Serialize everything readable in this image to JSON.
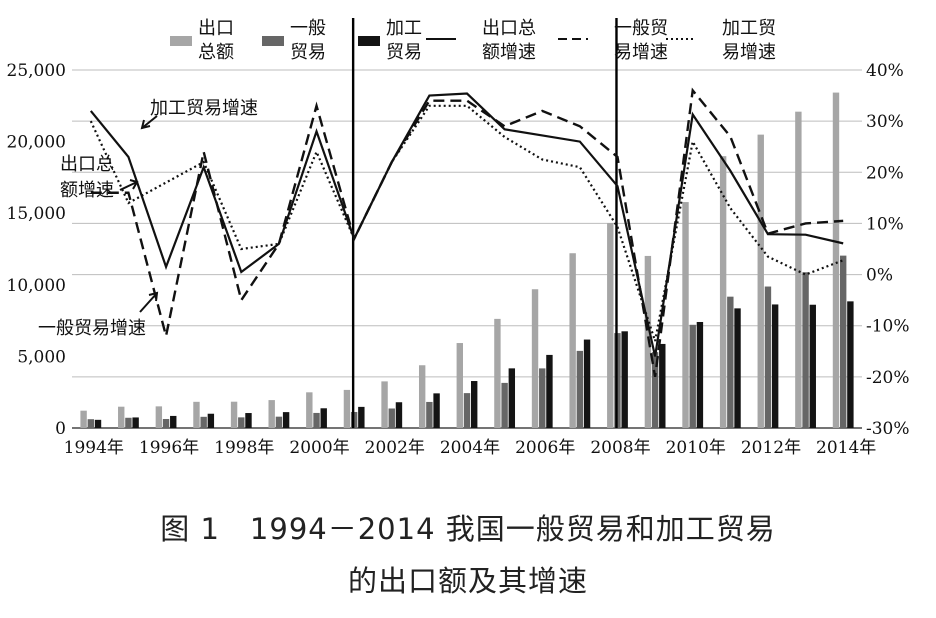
{
  "chart_data": {
    "type": "bar+line",
    "categories": [
      "1994年",
      "1995年",
      "1996年",
      "1997年",
      "1998年",
      "1999年",
      "2000年",
      "2001年",
      "2002年",
      "2003年",
      "2004年",
      "2005年",
      "2006年",
      "2007年",
      "2008年",
      "2009年",
      "2010年",
      "2011年",
      "2012年",
      "2013年",
      "2014年"
    ],
    "x_tick_labels": [
      "1994年",
      "1996年",
      "1998年",
      "2000年",
      "2002年",
      "2004年",
      "2006年",
      "2008年",
      "2010年",
      "2012年",
      "2014年"
    ],
    "y_left": {
      "range": [
        0,
        25000
      ],
      "ticks": [
        "0",
        "5,000",
        "10,000",
        "15,000",
        "20,000",
        "25,000"
      ]
    },
    "y_right": {
      "range": [
        -30,
        40
      ],
      "ticks": [
        "40%",
        "30%",
        "20%",
        "10%",
        "0%",
        "-10%",
        "-20%",
        "-30%"
      ]
    },
    "bar_series": [
      {
        "name": "出口总额",
        "color": "#a6a6a6",
        "values": [
          1210,
          1488,
          1511,
          1828,
          1837,
          1949,
          2492,
          2661,
          3256,
          4382,
          5933,
          7620,
          9690,
          12205,
          14307,
          12016,
          15778,
          18984,
          20487,
          22090,
          23423
        ]
      },
      {
        "name": "一般贸易",
        "color": "#666666",
        "values": [
          615,
          714,
          629,
          781,
          743,
          791,
          1052,
          1119,
          1362,
          1820,
          2436,
          3150,
          4163,
          5385,
          6628,
          5298,
          7207,
          9171,
          9879,
          10875,
          12037
        ]
      },
      {
        "name": "加工贸易",
        "color": "#141414",
        "values": [
          570,
          737,
          843,
          996,
          1045,
          1109,
          1377,
          1475,
          1799,
          2419,
          3280,
          4165,
          5104,
          6176,
          6752,
          5870,
          7403,
          8354,
          8628,
          8608,
          8844
        ]
      }
    ],
    "line_series": [
      {
        "name": "出口总额增速",
        "style": "solid",
        "values": [
          32,
          23,
          1.5,
          21,
          0.5,
          6,
          28,
          7,
          22,
          35,
          35.4,
          28.4,
          27.2,
          26,
          17.3,
          -16,
          31.3,
          20.3,
          7.9,
          7.8,
          6.1
        ]
      },
      {
        "name": "一般贸易增速",
        "style": "dashed",
        "values": [
          16,
          16,
          -12,
          24,
          -5,
          6,
          33,
          7,
          22,
          34,
          34,
          29,
          32,
          29,
          23,
          -20,
          36,
          27,
          8,
          10,
          10.5
        ]
      },
      {
        "name": "加工贸易增速",
        "style": "dotted",
        "values": [
          30,
          14,
          18,
          22,
          5,
          6,
          24,
          7,
          22,
          33,
          33,
          26.9,
          22.5,
          21,
          9.3,
          -13,
          26,
          13,
          3.5,
          0,
          2.8
        ]
      }
    ],
    "legend": [
      {
        "name": "出口\n总额",
        "swatch": "bar",
        "color": "#a6a6a6"
      },
      {
        "name": "一般\n贸易",
        "swatch": "bar",
        "color": "#666666"
      },
      {
        "name": "加工\n贸易",
        "swatch": "bar",
        "color": "#141414"
      },
      {
        "name": "出口总\n额增速",
        "swatch": "solid",
        "color": "#111111"
      },
      {
        "name": "一般贸\n易增速",
        "swatch": "dashed",
        "color": "#111111"
      },
      {
        "name": "加工贸\n易增速",
        "swatch": "dotted",
        "color": "#111111"
      }
    ],
    "annotations": [
      {
        "text": "加工贸易增速"
      },
      {
        "text": "出口总\n额增速"
      },
      {
        "text": "一般贸易增速"
      }
    ],
    "reference_lines_at_categories": [
      "2001年",
      "2008年"
    ],
    "grid": "horizontal"
  },
  "caption": {
    "line1": "图 1　1994－2014 我国一般贸易和加工贸易",
    "line2": "的出口额及其增速"
  }
}
